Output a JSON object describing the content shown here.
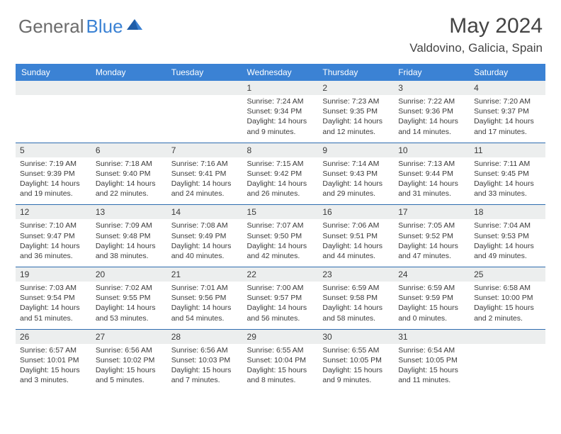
{
  "logo": {
    "text1": "General",
    "text2": "Blue",
    "color1": "#6c6c6c",
    "color2": "#3b82d4",
    "sail_color": "#1f5da8"
  },
  "header": {
    "month": "May 2024",
    "location": "Valdovino, Galicia, Spain"
  },
  "colors": {
    "header_bg": "#3b82d4",
    "header_text": "#ffffff",
    "daynum_bg": "#eceeee",
    "body_bg": "#ffffff",
    "separator": "#2e6caf",
    "text": "#3a3a3a"
  },
  "day_headers": [
    "Sunday",
    "Monday",
    "Tuesday",
    "Wednesday",
    "Thursday",
    "Friday",
    "Saturday"
  ],
  "weeks": [
    [
      {
        "n": "",
        "sr": "",
        "ss": "",
        "dl1": "",
        "dl2": ""
      },
      {
        "n": "",
        "sr": "",
        "ss": "",
        "dl1": "",
        "dl2": ""
      },
      {
        "n": "",
        "sr": "",
        "ss": "",
        "dl1": "",
        "dl2": ""
      },
      {
        "n": "1",
        "sr": "Sunrise: 7:24 AM",
        "ss": "Sunset: 9:34 PM",
        "dl1": "Daylight: 14 hours",
        "dl2": "and 9 minutes."
      },
      {
        "n": "2",
        "sr": "Sunrise: 7:23 AM",
        "ss": "Sunset: 9:35 PM",
        "dl1": "Daylight: 14 hours",
        "dl2": "and 12 minutes."
      },
      {
        "n": "3",
        "sr": "Sunrise: 7:22 AM",
        "ss": "Sunset: 9:36 PM",
        "dl1": "Daylight: 14 hours",
        "dl2": "and 14 minutes."
      },
      {
        "n": "4",
        "sr": "Sunrise: 7:20 AM",
        "ss": "Sunset: 9:37 PM",
        "dl1": "Daylight: 14 hours",
        "dl2": "and 17 minutes."
      }
    ],
    [
      {
        "n": "5",
        "sr": "Sunrise: 7:19 AM",
        "ss": "Sunset: 9:39 PM",
        "dl1": "Daylight: 14 hours",
        "dl2": "and 19 minutes."
      },
      {
        "n": "6",
        "sr": "Sunrise: 7:18 AM",
        "ss": "Sunset: 9:40 PM",
        "dl1": "Daylight: 14 hours",
        "dl2": "and 22 minutes."
      },
      {
        "n": "7",
        "sr": "Sunrise: 7:16 AM",
        "ss": "Sunset: 9:41 PM",
        "dl1": "Daylight: 14 hours",
        "dl2": "and 24 minutes."
      },
      {
        "n": "8",
        "sr": "Sunrise: 7:15 AM",
        "ss": "Sunset: 9:42 PM",
        "dl1": "Daylight: 14 hours",
        "dl2": "and 26 minutes."
      },
      {
        "n": "9",
        "sr": "Sunrise: 7:14 AM",
        "ss": "Sunset: 9:43 PM",
        "dl1": "Daylight: 14 hours",
        "dl2": "and 29 minutes."
      },
      {
        "n": "10",
        "sr": "Sunrise: 7:13 AM",
        "ss": "Sunset: 9:44 PM",
        "dl1": "Daylight: 14 hours",
        "dl2": "and 31 minutes."
      },
      {
        "n": "11",
        "sr": "Sunrise: 7:11 AM",
        "ss": "Sunset: 9:45 PM",
        "dl1": "Daylight: 14 hours",
        "dl2": "and 33 minutes."
      }
    ],
    [
      {
        "n": "12",
        "sr": "Sunrise: 7:10 AM",
        "ss": "Sunset: 9:47 PM",
        "dl1": "Daylight: 14 hours",
        "dl2": "and 36 minutes."
      },
      {
        "n": "13",
        "sr": "Sunrise: 7:09 AM",
        "ss": "Sunset: 9:48 PM",
        "dl1": "Daylight: 14 hours",
        "dl2": "and 38 minutes."
      },
      {
        "n": "14",
        "sr": "Sunrise: 7:08 AM",
        "ss": "Sunset: 9:49 PM",
        "dl1": "Daylight: 14 hours",
        "dl2": "and 40 minutes."
      },
      {
        "n": "15",
        "sr": "Sunrise: 7:07 AM",
        "ss": "Sunset: 9:50 PM",
        "dl1": "Daylight: 14 hours",
        "dl2": "and 42 minutes."
      },
      {
        "n": "16",
        "sr": "Sunrise: 7:06 AM",
        "ss": "Sunset: 9:51 PM",
        "dl1": "Daylight: 14 hours",
        "dl2": "and 44 minutes."
      },
      {
        "n": "17",
        "sr": "Sunrise: 7:05 AM",
        "ss": "Sunset: 9:52 PM",
        "dl1": "Daylight: 14 hours",
        "dl2": "and 47 minutes."
      },
      {
        "n": "18",
        "sr": "Sunrise: 7:04 AM",
        "ss": "Sunset: 9:53 PM",
        "dl1": "Daylight: 14 hours",
        "dl2": "and 49 minutes."
      }
    ],
    [
      {
        "n": "19",
        "sr": "Sunrise: 7:03 AM",
        "ss": "Sunset: 9:54 PM",
        "dl1": "Daylight: 14 hours",
        "dl2": "and 51 minutes."
      },
      {
        "n": "20",
        "sr": "Sunrise: 7:02 AM",
        "ss": "Sunset: 9:55 PM",
        "dl1": "Daylight: 14 hours",
        "dl2": "and 53 minutes."
      },
      {
        "n": "21",
        "sr": "Sunrise: 7:01 AM",
        "ss": "Sunset: 9:56 PM",
        "dl1": "Daylight: 14 hours",
        "dl2": "and 54 minutes."
      },
      {
        "n": "22",
        "sr": "Sunrise: 7:00 AM",
        "ss": "Sunset: 9:57 PM",
        "dl1": "Daylight: 14 hours",
        "dl2": "and 56 minutes."
      },
      {
        "n": "23",
        "sr": "Sunrise: 6:59 AM",
        "ss": "Sunset: 9:58 PM",
        "dl1": "Daylight: 14 hours",
        "dl2": "and 58 minutes."
      },
      {
        "n": "24",
        "sr": "Sunrise: 6:59 AM",
        "ss": "Sunset: 9:59 PM",
        "dl1": "Daylight: 15 hours",
        "dl2": "and 0 minutes."
      },
      {
        "n": "25",
        "sr": "Sunrise: 6:58 AM",
        "ss": "Sunset: 10:00 PM",
        "dl1": "Daylight: 15 hours",
        "dl2": "and 2 minutes."
      }
    ],
    [
      {
        "n": "26",
        "sr": "Sunrise: 6:57 AM",
        "ss": "Sunset: 10:01 PM",
        "dl1": "Daylight: 15 hours",
        "dl2": "and 3 minutes."
      },
      {
        "n": "27",
        "sr": "Sunrise: 6:56 AM",
        "ss": "Sunset: 10:02 PM",
        "dl1": "Daylight: 15 hours",
        "dl2": "and 5 minutes."
      },
      {
        "n": "28",
        "sr": "Sunrise: 6:56 AM",
        "ss": "Sunset: 10:03 PM",
        "dl1": "Daylight: 15 hours",
        "dl2": "and 7 minutes."
      },
      {
        "n": "29",
        "sr": "Sunrise: 6:55 AM",
        "ss": "Sunset: 10:04 PM",
        "dl1": "Daylight: 15 hours",
        "dl2": "and 8 minutes."
      },
      {
        "n": "30",
        "sr": "Sunrise: 6:55 AM",
        "ss": "Sunset: 10:05 PM",
        "dl1": "Daylight: 15 hours",
        "dl2": "and 9 minutes."
      },
      {
        "n": "31",
        "sr": "Sunrise: 6:54 AM",
        "ss": "Sunset: 10:05 PM",
        "dl1": "Daylight: 15 hours",
        "dl2": "and 11 minutes."
      },
      {
        "n": "",
        "sr": "",
        "ss": "",
        "dl1": "",
        "dl2": ""
      }
    ]
  ]
}
